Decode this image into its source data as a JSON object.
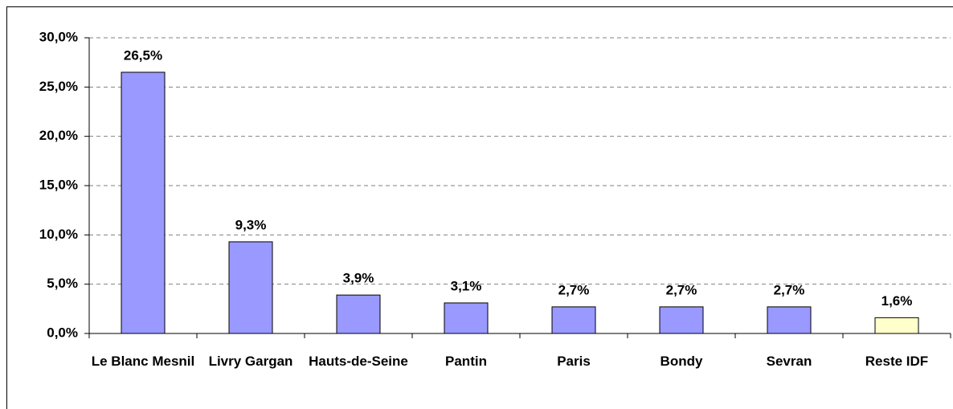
{
  "chart_data": {
    "type": "bar",
    "categories": [
      "Le Blanc Mesnil",
      "Livry Gargan",
      "Hauts-de-Seine",
      "Pantin",
      "Paris",
      "Bondy",
      "Sevran",
      "Reste IDF"
    ],
    "values": [
      26.5,
      9.3,
      3.9,
      3.1,
      2.7,
      2.7,
      2.7,
      1.6
    ],
    "value_labels": [
      "26,5%",
      "9,3%",
      "3,9%",
      "3,1%",
      "2,7%",
      "2,7%",
      "2,7%",
      "1,6%"
    ],
    "colors": [
      "#9999ff",
      "#9999ff",
      "#9999ff",
      "#9999ff",
      "#9999ff",
      "#9999ff",
      "#9999ff",
      "#ffffcc"
    ],
    "ylim": [
      0,
      30
    ],
    "yticks": [
      {
        "value": 0,
        "label": "0,0%"
      },
      {
        "value": 5,
        "label": "5,0%"
      },
      {
        "value": 10,
        "label": "10,0%"
      },
      {
        "value": 15,
        "label": "15,0%"
      },
      {
        "value": 20,
        "label": "20,0%"
      },
      {
        "value": 25,
        "label": "25,0%"
      },
      {
        "value": 30,
        "label": "30,0%"
      }
    ],
    "grid": true
  }
}
